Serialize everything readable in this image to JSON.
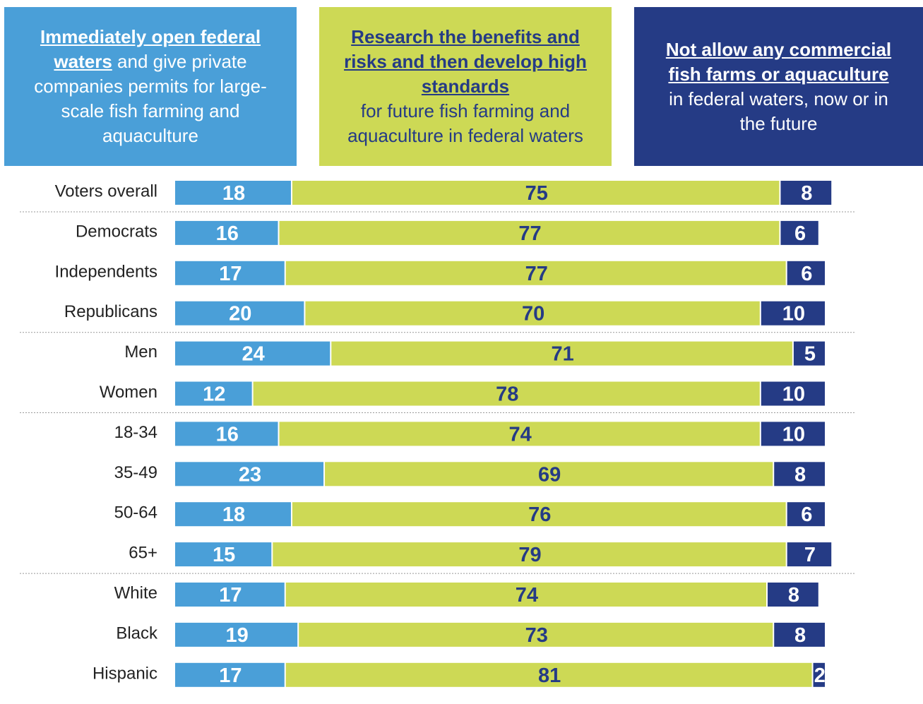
{
  "chart_data": {
    "type": "stacked-bar",
    "categories": [
      "Voters overall",
      "Democrats",
      "Independents",
      "Republicans",
      "Men",
      "Women",
      "18-34",
      "35-49",
      "50-64",
      "65+",
      "White",
      "Black",
      "Hispanic"
    ],
    "series": [
      {
        "name": "Immediately open federal waters",
        "description": "and give private companies permits for large-scale fish farming and aquaculture",
        "color": "#4a9fd8",
        "label_color": "#ffffff",
        "values": [
          18,
          16,
          17,
          20,
          24,
          12,
          16,
          23,
          18,
          15,
          17,
          19,
          17
        ]
      },
      {
        "name": "Research the benefits and risks and then develop high standards",
        "description": "for future fish farming and aquaculture in federal waters",
        "color": "#cdd955",
        "label_color": "#253b85",
        "values": [
          75,
          77,
          77,
          70,
          71,
          78,
          74,
          69,
          76,
          79,
          74,
          73,
          81
        ]
      },
      {
        "name": "Not allow any commercial fish farms or aquaculture",
        "description": "in federal waters, now or in the future",
        "color": "#253b85",
        "label_color": "#ffffff",
        "values": [
          8,
          6,
          6,
          10,
          5,
          10,
          10,
          8,
          6,
          7,
          8,
          8,
          2
        ]
      }
    ]
  }
}
